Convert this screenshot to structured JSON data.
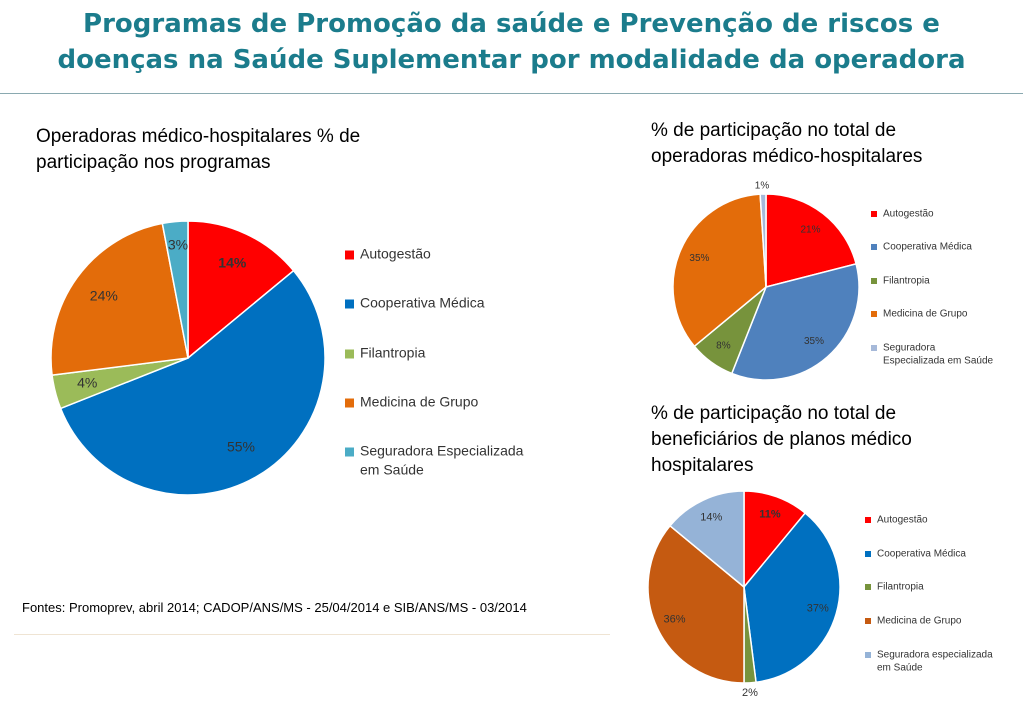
{
  "title": {
    "line1": "Programas de Promoção da saúde e Prevenção de riscos e",
    "line2": "doenças na Saúde Suplementar por modalidade da operadora"
  },
  "sources": "Fontes: Promoprev, abril 2014; CADOP/ANS/MS - 25/04/2014 e SIB/ANS/MS - 03/2014",
  "chart_data": [
    {
      "type": "pie",
      "title": "Operadoras médico-hospitalares % de participação nos programas",
      "title_lines": [
        "Operadoras médico-hospitalares % de",
        "participação nos programas"
      ],
      "categories": [
        "Autogestão",
        "Cooperativa Médica",
        "Filantropia",
        "Medicina de Grupo",
        "Seguradora Especializada em Saúde"
      ],
      "legend_lines": [
        [
          "Autogestão"
        ],
        [
          "Cooperativa Médica"
        ],
        [
          "Filantropia"
        ],
        [
          "Medicina de Grupo"
        ],
        [
          "Seguradora Especializada",
          "em Saúde"
        ]
      ],
      "values": [
        14,
        55,
        4,
        24,
        3
      ],
      "labels": [
        "14%",
        "55%",
        "4%",
        "24%",
        "3%"
      ],
      "colors": [
        "#ff0000",
        "#0070c0",
        "#9bbb59",
        "#e36c0a",
        "#4bacc6"
      ],
      "legend_position": "right"
    },
    {
      "type": "pie",
      "title": "% de participação no total de operadoras médico-hospitalares",
      "title_lines": [
        "% de participação no total de",
        "operadoras médico-hospitalares"
      ],
      "categories": [
        "Autogestão",
        "Cooperativa Médica",
        "Filantropia",
        "Medicina de Grupo",
        "Seguradora Especializada em Saúde"
      ],
      "legend_lines": [
        [
          "Autogestão"
        ],
        [
          "Cooperativa Médica"
        ],
        [
          "Filantropia"
        ],
        [
          "Medicina de Grupo"
        ],
        [
          "Seguradora",
          "Especializada em Saúde"
        ]
      ],
      "values": [
        21,
        35,
        8,
        35,
        1
      ],
      "labels": [
        "21%",
        "35%",
        "8%",
        "35%",
        "1%"
      ],
      "colors": [
        "#ff0000",
        "#4f81bd",
        "#77933c",
        "#e36c0a",
        "#a6b9d9"
      ],
      "legend_position": "right"
    },
    {
      "type": "pie",
      "title": "% de participação no total de beneficiários de planos médico hospitalares",
      "title_lines": [
        "% de participação no total de",
        "beneficiários de planos médico",
        "hospitalares"
      ],
      "categories": [
        "Autogestão",
        "Cooperativa Médica",
        "Filantropia",
        "Medicina de Grupo",
        "Seguradora especializada em Saúde"
      ],
      "legend_lines": [
        [
          "Autogestão"
        ],
        [
          "Cooperativa Médica"
        ],
        [
          "Filantropia"
        ],
        [
          "Medicina de Grupo"
        ],
        [
          "Seguradora especializada",
          "em Saúde"
        ]
      ],
      "values": [
        11,
        37,
        2,
        36,
        14
      ],
      "labels": [
        "11%",
        "37%",
        "2%",
        "36%",
        "14%"
      ],
      "colors": [
        "#ff0000",
        "#0070c0",
        "#77933c",
        "#c55a11",
        "#95b3d7"
      ],
      "legend_position": "right"
    }
  ]
}
